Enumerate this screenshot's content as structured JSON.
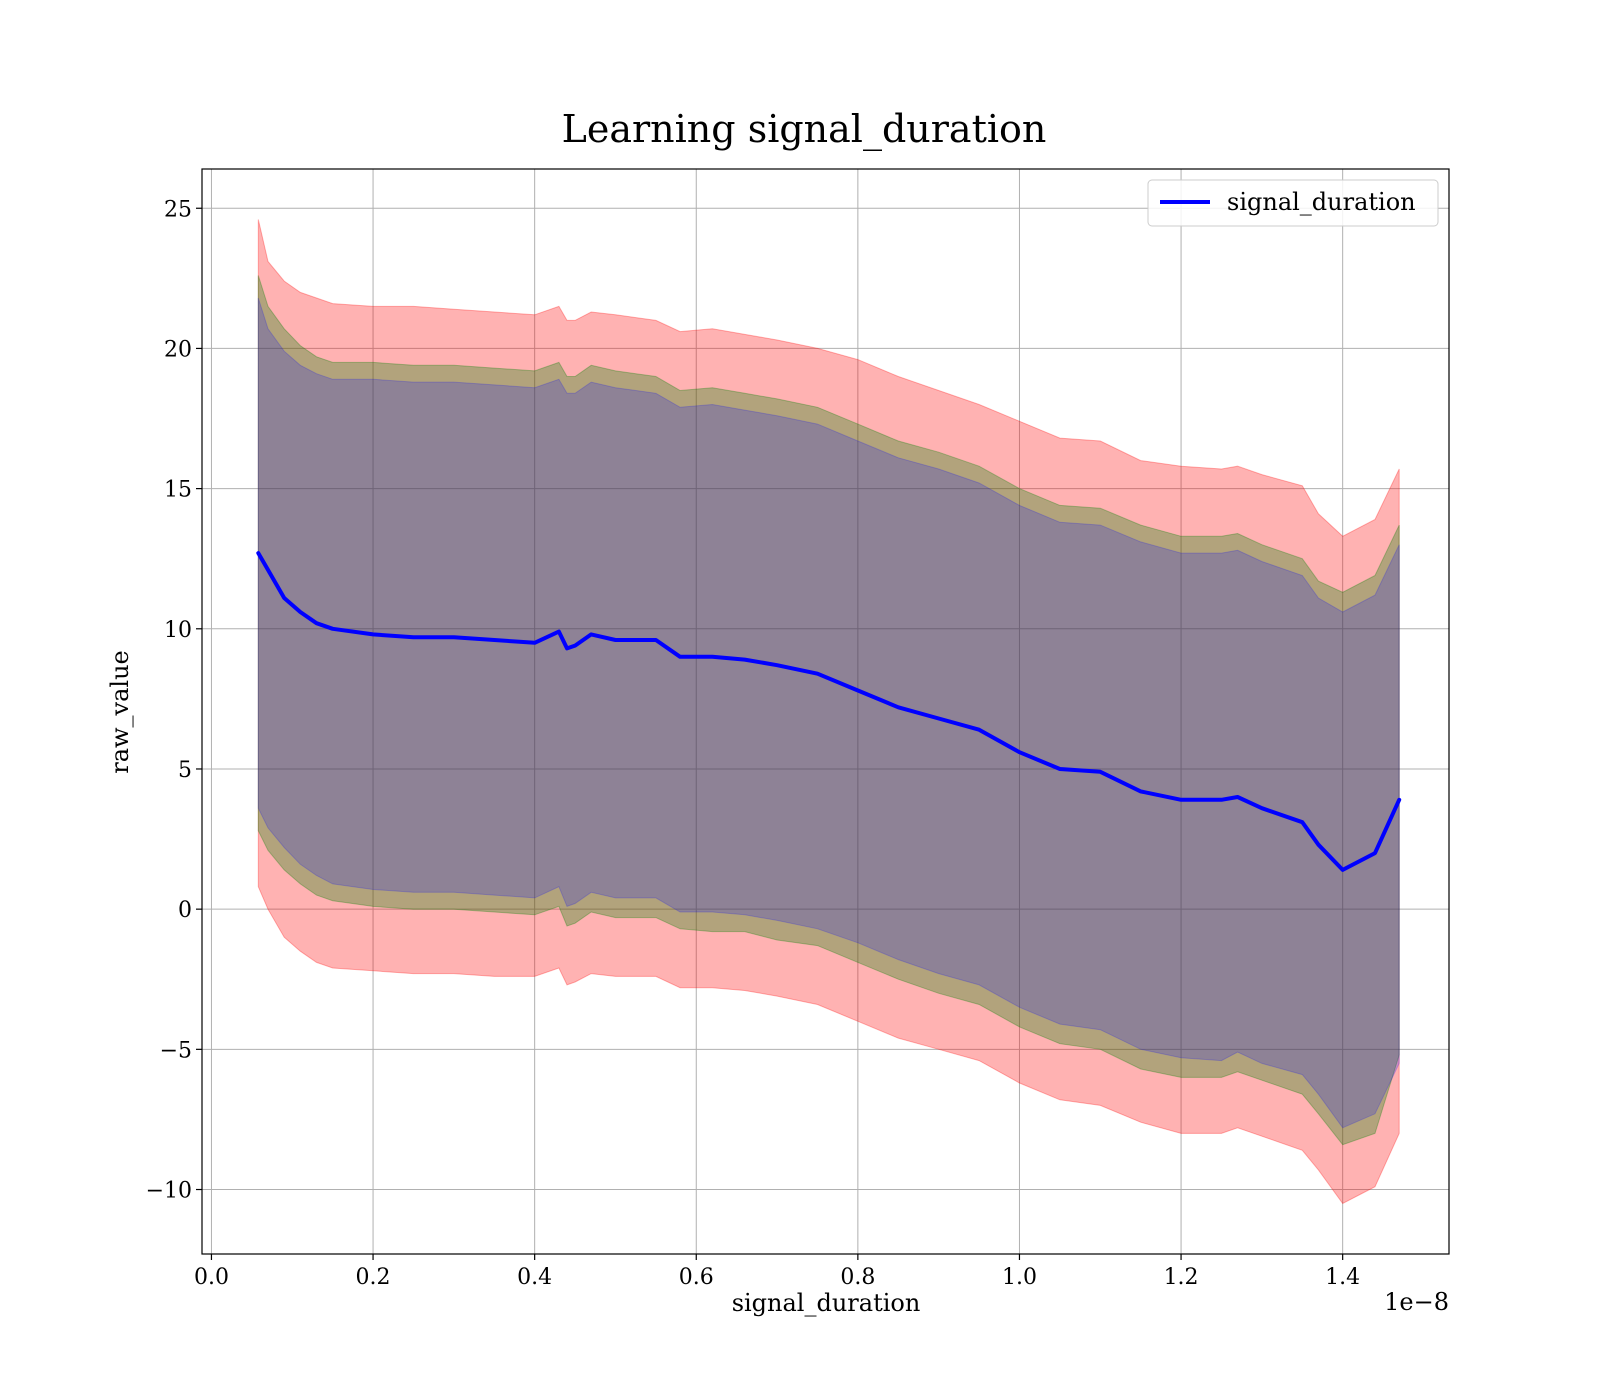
{
  "chart_data": {
    "type": "line",
    "title": "Learning signal_duration",
    "xlabel": "signal_duration",
    "ylabel": "raw_value",
    "x_offset_text": "1e−8",
    "xlim": [
      -0.0117,
      1.5316
    ],
    "ylim": [
      -12.3,
      26.4
    ],
    "grid": true,
    "legend_placement": "top-right",
    "x_ticks": [
      0.0,
      0.2,
      0.4,
      0.6,
      0.8,
      1.0,
      1.2,
      1.4
    ],
    "x_tick_labels": [
      "0.0",
      "0.2",
      "0.4",
      "0.6",
      "0.8",
      "1.0",
      "1.2",
      "1.4"
    ],
    "y_ticks": [
      -10,
      -5,
      0,
      5,
      10,
      15,
      20,
      25
    ],
    "y_tick_labels": [
      "−10",
      "−5",
      "0",
      "5",
      "10",
      "15",
      "20",
      "25"
    ],
    "x": [
      0.058,
      0.07,
      0.09,
      0.11,
      0.13,
      0.15,
      0.2,
      0.25,
      0.3,
      0.35,
      0.4,
      0.43,
      0.44,
      0.45,
      0.47,
      0.5,
      0.55,
      0.58,
      0.62,
      0.66,
      0.7,
      0.75,
      0.8,
      0.85,
      0.9,
      0.95,
      1.0,
      1.05,
      1.1,
      1.15,
      1.2,
      1.25,
      1.27,
      1.3,
      1.35,
      1.37,
      1.4,
      1.44,
      1.47
    ],
    "series": [
      {
        "name": "signal_duration",
        "color": "#0000ff",
        "values": [
          12.7,
          12.1,
          11.1,
          10.6,
          10.2,
          10.0,
          9.8,
          9.7,
          9.7,
          9.6,
          9.5,
          9.9,
          9.3,
          9.4,
          9.8,
          9.6,
          9.6,
          9.0,
          9.0,
          8.9,
          8.7,
          8.4,
          7.8,
          7.2,
          6.8,
          6.4,
          5.6,
          5.0,
          4.9,
          4.2,
          3.9,
          3.9,
          4.0,
          3.6,
          3.1,
          2.3,
          1.4,
          2.0,
          3.9
        ]
      }
    ],
    "bands": [
      {
        "color": "#ff0000",
        "opacity": 0.3,
        "upper": [
          24.6,
          23.1,
          22.4,
          22.0,
          21.8,
          21.6,
          21.5,
          21.5,
          21.4,
          21.3,
          21.2,
          21.5,
          21.0,
          21.0,
          21.3,
          21.2,
          21.0,
          20.6,
          20.7,
          20.5,
          20.3,
          20.0,
          19.6,
          19.0,
          18.5,
          18.0,
          17.4,
          16.8,
          16.7,
          16.0,
          15.8,
          15.7,
          15.8,
          15.5,
          15.1,
          14.1,
          13.3,
          13.9,
          15.7
        ],
        "lower": [
          0.8,
          0.0,
          -1.0,
          -1.5,
          -1.9,
          -2.1,
          -2.2,
          -2.3,
          -2.3,
          -2.4,
          -2.4,
          -2.1,
          -2.7,
          -2.6,
          -2.3,
          -2.4,
          -2.4,
          -2.8,
          -2.8,
          -2.9,
          -3.1,
          -3.4,
          -4.0,
          -4.6,
          -5.0,
          -5.4,
          -6.2,
          -6.8,
          -7.0,
          -7.6,
          -8.0,
          -8.0,
          -7.8,
          -8.1,
          -8.6,
          -9.3,
          -10.5,
          -9.9,
          -8.0
        ]
      },
      {
        "color": "#008000",
        "opacity": 0.3,
        "upper": [
          22.6,
          21.5,
          20.7,
          20.1,
          19.7,
          19.5,
          19.5,
          19.4,
          19.4,
          19.3,
          19.2,
          19.5,
          19.0,
          19.0,
          19.4,
          19.2,
          19.0,
          18.5,
          18.6,
          18.4,
          18.2,
          17.9,
          17.3,
          16.7,
          16.3,
          15.8,
          15.0,
          14.4,
          14.3,
          13.7,
          13.3,
          13.3,
          13.4,
          13.0,
          12.5,
          11.7,
          11.3,
          11.9,
          13.7
        ],
        "lower": [
          2.8,
          2.1,
          1.4,
          0.9,
          0.5,
          0.3,
          0.1,
          0.0,
          0.0,
          -0.1,
          -0.2,
          0.1,
          -0.6,
          -0.5,
          -0.1,
          -0.3,
          -0.3,
          -0.7,
          -0.8,
          -0.8,
          -1.1,
          -1.3,
          -1.9,
          -2.5,
          -3.0,
          -3.4,
          -4.2,
          -4.8,
          -5.0,
          -5.7,
          -6.0,
          -6.0,
          -5.8,
          -6.1,
          -6.6,
          -7.3,
          -8.4,
          -8.0,
          -5.2
        ]
      },
      {
        "color": "#0000ff",
        "opacity": 0.2,
        "upper": [
          21.8,
          20.7,
          19.9,
          19.4,
          19.1,
          18.9,
          18.9,
          18.8,
          18.8,
          18.7,
          18.6,
          18.9,
          18.4,
          18.4,
          18.8,
          18.6,
          18.4,
          17.9,
          18.0,
          17.8,
          17.6,
          17.3,
          16.7,
          16.1,
          15.7,
          15.2,
          14.4,
          13.8,
          13.7,
          13.1,
          12.7,
          12.7,
          12.8,
          12.4,
          11.9,
          11.1,
          10.6,
          11.2,
          13.0
        ],
        "lower": [
          3.6,
          2.9,
          2.2,
          1.6,
          1.2,
          0.9,
          0.7,
          0.6,
          0.6,
          0.5,
          0.4,
          0.8,
          0.1,
          0.2,
          0.6,
          0.4,
          0.4,
          -0.1,
          -0.1,
          -0.2,
          -0.4,
          -0.7,
          -1.2,
          -1.8,
          -2.3,
          -2.7,
          -3.5,
          -4.1,
          -4.3,
          -5.0,
          -5.3,
          -5.4,
          -5.1,
          -5.5,
          -5.9,
          -6.6,
          -7.8,
          -7.3,
          -5.5
        ]
      }
    ]
  }
}
